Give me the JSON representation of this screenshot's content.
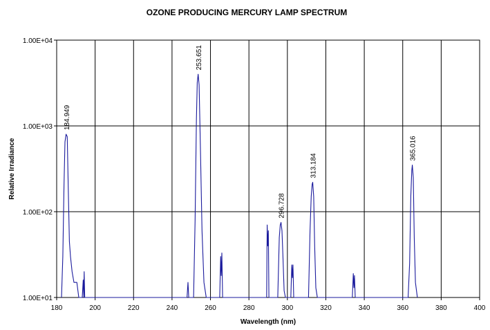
{
  "chart_data": {
    "type": "line",
    "title": "OZONE PRODUCING MERCURY LAMP SPECTRUM",
    "xlabel": "Wavelength (nm)",
    "ylabel": "Relative Irradiance",
    "xlim": [
      180,
      400
    ],
    "ylim": [
      10,
      10000
    ],
    "y_scale": "log",
    "grid": true,
    "legend": "none",
    "line_color": "#1a1a9c",
    "x_ticks": [
      180,
      200,
      220,
      240,
      260,
      280,
      300,
      320,
      340,
      360,
      380,
      400
    ],
    "x_tick_labels": [
      "180",
      "200",
      "220",
      "240",
      "260",
      "280",
      "300",
      "320",
      "340",
      "360",
      "380",
      "400"
    ],
    "y_ticks": [
      10,
      100,
      1000,
      10000
    ],
    "y_tick_labels": [
      "1.00E+01",
      "1.00E+02",
      "1.00E+03",
      "1.00E+04"
    ],
    "annotations": [
      {
        "text": "184.949",
        "x": 184.949,
        "y": 800
      },
      {
        "text": "253.651",
        "x": 253.651,
        "y": 4000
      },
      {
        "text": "296.728",
        "x": 296.728,
        "y": 75
      },
      {
        "text": "313.184",
        "x": 313.184,
        "y": 220
      },
      {
        "text": "365.016",
        "x": 365.016,
        "y": 350
      }
    ],
    "series": [
      {
        "x": [
          182.5,
          183.2,
          183.8,
          184.3,
          184.9,
          185.5,
          186.0,
          186.6,
          187.2,
          188.0,
          189.0,
          190.5,
          191.5,
          193.3,
          193.8,
          194.1,
          194.3,
          194.6,
          195.0,
          247.8,
          248.3,
          248.7,
          249.0,
          251.2,
          252.0,
          252.7,
          253.1,
          253.6,
          254.1,
          254.8,
          255.6,
          256.6,
          257.8,
          264.8,
          265.3,
          265.6,
          265.9,
          266.3,
          289.2,
          289.5,
          289.8,
          290.1,
          290.4,
          295.0,
          295.8,
          296.3,
          296.7,
          297.2,
          297.7,
          298.3,
          299.0,
          301.8,
          302.3,
          302.6,
          302.9,
          303.3,
          311.0,
          311.8,
          312.4,
          312.9,
          313.2,
          313.7,
          314.2,
          314.8,
          315.6,
          333.8,
          334.3,
          334.6,
          334.9,
          335.3,
          362.8,
          363.6,
          364.2,
          364.7,
          365.0,
          365.5,
          366.0,
          366.6,
          367.6
        ],
        "y": [
          10,
          30,
          200,
          650,
          800,
          750,
          200,
          45,
          30,
          20,
          15,
          15,
          10,
          10,
          16,
          10,
          20,
          10,
          10,
          10,
          15,
          10,
          10,
          10,
          80,
          1200,
          3200,
          4000,
          3000,
          500,
          60,
          15,
          10,
          10,
          30,
          18,
          33,
          10,
          10,
          70,
          40,
          60,
          10,
          10,
          50,
          70,
          75,
          60,
          30,
          12,
          10,
          10,
          24,
          17,
          24,
          10,
          10,
          60,
          150,
          210,
          220,
          150,
          40,
          13,
          10,
          10,
          19,
          13,
          18,
          10,
          10,
          25,
          150,
          300,
          350,
          250,
          50,
          15,
          10
        ]
      }
    ]
  }
}
